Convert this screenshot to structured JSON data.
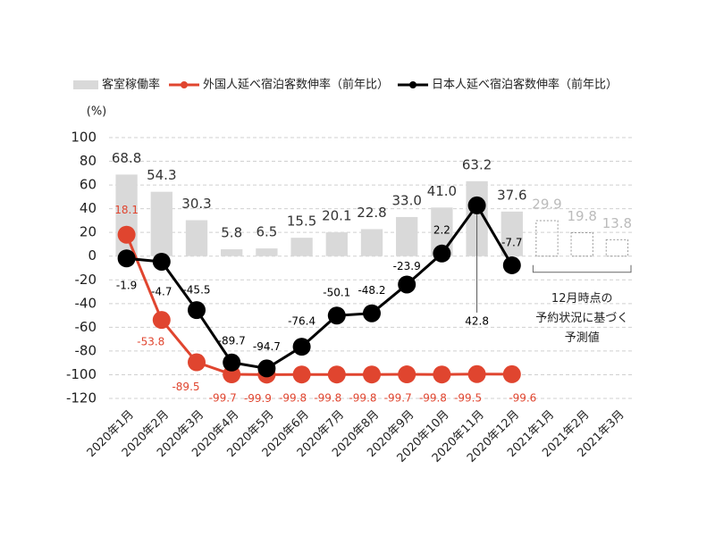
{
  "chart_data": {
    "type": "bar-line",
    "y_label": "(%)",
    "categories": [
      "2020年1月",
      "2020年2月",
      "2020年3月",
      "2020年4月",
      "2020年5月",
      "2020年6月",
      "2020年7月",
      "2020年8月",
      "2020年9月",
      "2020年10月",
      "2020年11月",
      "2020年12月",
      "2021年1月",
      "2021年2月",
      "2021年3月"
    ],
    "ylim": [
      -120,
      100
    ],
    "yticks": [
      -120,
      -100,
      -80,
      -60,
      -40,
      -20,
      0,
      20,
      40,
      60,
      80,
      100
    ],
    "grid": true,
    "series": [
      {
        "name": "客室稼働率",
        "type": "bar",
        "color": "#d9d9d9",
        "values": [
          68.8,
          54.3,
          30.3,
          5.8,
          6.5,
          15.5,
          20.1,
          22.8,
          33.0,
          41.0,
          63.2,
          37.6,
          29.9,
          19.8,
          13.8
        ],
        "value_labels": [
          "68.8",
          "54.3",
          "30.3",
          "5.8",
          "6.5",
          "15.5",
          "20.1",
          "22.8",
          "33.0",
          "41.0",
          "63.2",
          "37.6",
          "29.9",
          "19.8",
          "13.8"
        ],
        "dashed": [
          false,
          false,
          false,
          false,
          false,
          false,
          false,
          false,
          false,
          false,
          false,
          false,
          true,
          true,
          true
        ]
      },
      {
        "name": "外国人延べ宿泊客数伸率（前年比）",
        "type": "line",
        "color": "#e0452f",
        "values": [
          18.1,
          -53.8,
          -89.5,
          -99.7,
          -99.9,
          -99.8,
          -99.8,
          -99.8,
          -99.7,
          -99.8,
          -99.5,
          -99.6,
          null,
          null,
          null
        ]
      },
      {
        "name": "日本人延べ宿泊客数伸率（前年比）",
        "type": "line",
        "color": "#000000",
        "values": [
          -1.9,
          -4.7,
          -45.5,
          -89.7,
          -94.7,
          -76.4,
          -50.1,
          -48.2,
          -23.9,
          2.2,
          42.8,
          -7.7,
          null,
          null,
          null
        ]
      }
    ],
    "annotation": [
      "12月時点の",
      "予約状況に基づく",
      "予測値"
    ]
  }
}
